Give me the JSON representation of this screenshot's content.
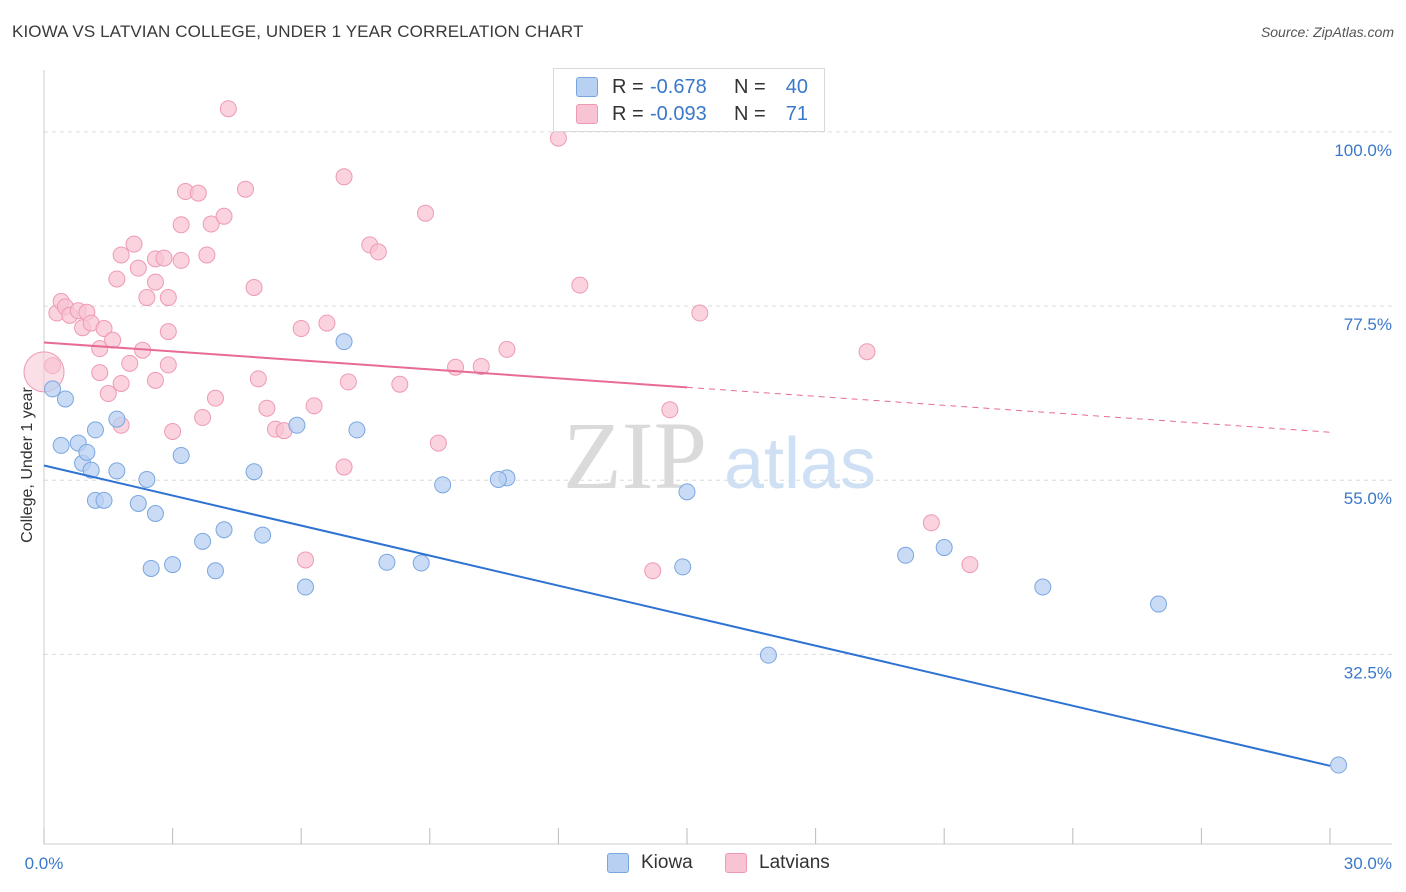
{
  "header": {
    "title": "KIOWA VS LATVIAN COLLEGE, UNDER 1 YEAR CORRELATION CHART",
    "source": "Source: ZipAtlas.com"
  },
  "watermark": {
    "zip": "ZIP",
    "atlas": "atlas"
  },
  "legend_top": {
    "rows": [
      {
        "r_label": "R = ",
        "r_value": "-0.678",
        "n_label": "N = ",
        "n_value": "40"
      },
      {
        "r_label": "R = ",
        "r_value": "-0.093",
        "n_label": "N = ",
        "n_value": "71"
      }
    ]
  },
  "legend_bottom": {
    "items": [
      {
        "label": "Kiowa"
      },
      {
        "label": "Latvians"
      }
    ]
  },
  "colors": {
    "kiowa_fill": "#b8d0f2",
    "kiowa_stroke": "#7aa6e0",
    "kiowa_line": "#2e72d2",
    "latvian_fill": "#f8c4d3",
    "latvian_stroke": "#ee9ab4",
    "latvian_line": "#e86b95",
    "tick_label": "#3a78c9",
    "grid": "#dcdcdc"
  },
  "chart_data": {
    "type": "scatter",
    "title": "KIOWA VS LATVIAN COLLEGE, UNDER 1 YEAR CORRELATION CHART",
    "xlabel": "",
    "ylabel": "College, Under 1 year",
    "xlim": [
      0,
      30
    ],
    "ylim": [
      8,
      108
    ],
    "x_tick_labels": [
      "0.0%",
      "30.0%"
    ],
    "y_ticks": [
      32.5,
      55,
      77.5,
      100
    ],
    "y_tick_labels": [
      "32.5%",
      "55.0%",
      "77.5%",
      "100.0%"
    ],
    "grid": true,
    "legend_position": "top-center",
    "series": [
      {
        "name": "Kiowa",
        "points": [
          [
            0.2,
            66.8
          ],
          [
            0.5,
            65.5
          ],
          [
            0.4,
            59.5
          ],
          [
            0.8,
            59.8
          ],
          [
            0.9,
            57.2
          ],
          [
            1.0,
            58.6
          ],
          [
            1.1,
            56.3
          ],
          [
            1.7,
            62.9
          ],
          [
            1.2,
            52.4
          ],
          [
            1.4,
            52.4
          ],
          [
            1.2,
            61.5
          ],
          [
            1.7,
            56.2
          ],
          [
            2.2,
            52.0
          ],
          [
            2.4,
            55.1
          ],
          [
            2.5,
            43.6
          ],
          [
            2.6,
            50.7
          ],
          [
            3.2,
            58.2
          ],
          [
            3.0,
            44.1
          ],
          [
            3.7,
            47.1
          ],
          [
            4.0,
            43.3
          ],
          [
            4.2,
            48.6
          ],
          [
            5.1,
            47.9
          ],
          [
            5.9,
            62.1
          ],
          [
            6.1,
            41.2
          ],
          [
            4.9,
            56.1
          ],
          [
            7.0,
            72.9
          ],
          [
            7.3,
            61.5
          ],
          [
            8.0,
            44.4
          ],
          [
            8.8,
            44.3
          ],
          [
            9.3,
            54.4
          ],
          [
            10.8,
            55.3
          ],
          [
            10.6,
            55.1
          ],
          [
            15.0,
            53.5
          ],
          [
            14.9,
            43.8
          ],
          [
            16.9,
            32.4
          ],
          [
            20.1,
            45.3
          ],
          [
            21.0,
            46.3
          ],
          [
            23.3,
            41.2
          ],
          [
            26.0,
            39.0
          ],
          [
            30.2,
            18.2
          ]
        ]
      },
      {
        "name": "Latvians",
        "points": [
          [
            0.2,
            69.8
          ],
          [
            0.3,
            76.6
          ],
          [
            0.4,
            78.1
          ],
          [
            0.5,
            77.4
          ],
          [
            0.6,
            76.3
          ],
          [
            0.8,
            76.9
          ],
          [
            1.0,
            76.7
          ],
          [
            0.9,
            74.7
          ],
          [
            1.1,
            75.3
          ],
          [
            1.3,
            72.0
          ],
          [
            1.3,
            68.9
          ],
          [
            1.5,
            66.2
          ],
          [
            1.4,
            74.6
          ],
          [
            1.6,
            73.1
          ],
          [
            1.8,
            67.5
          ],
          [
            1.8,
            62.1
          ],
          [
            2.0,
            70.1
          ],
          [
            1.7,
            81.0
          ],
          [
            1.8,
            84.1
          ],
          [
            2.1,
            85.5
          ],
          [
            2.2,
            82.4
          ],
          [
            2.4,
            78.6
          ],
          [
            2.6,
            83.6
          ],
          [
            2.6,
            80.6
          ],
          [
            2.3,
            71.8
          ],
          [
            2.6,
            67.9
          ],
          [
            2.8,
            83.7
          ],
          [
            2.9,
            78.6
          ],
          [
            2.9,
            74.2
          ],
          [
            2.9,
            69.9
          ],
          [
            3.0,
            61.3
          ],
          [
            3.2,
            83.4
          ],
          [
            3.2,
            88.0
          ],
          [
            3.3,
            92.3
          ],
          [
            3.6,
            92.1
          ],
          [
            3.7,
            63.1
          ],
          [
            3.8,
            84.1
          ],
          [
            3.9,
            88.1
          ],
          [
            4.0,
            65.6
          ],
          [
            4.2,
            89.1
          ],
          [
            4.3,
            103.0
          ],
          [
            4.7,
            92.6
          ],
          [
            4.9,
            79.9
          ],
          [
            5.0,
            68.1
          ],
          [
            5.2,
            64.3
          ],
          [
            5.4,
            61.6
          ],
          [
            5.6,
            61.4
          ],
          [
            6.0,
            74.6
          ],
          [
            6.3,
            64.6
          ],
          [
            6.1,
            44.7
          ],
          [
            6.6,
            75.3
          ],
          [
            7.0,
            94.2
          ],
          [
            7.1,
            67.7
          ],
          [
            7.0,
            56.7
          ],
          [
            7.6,
            85.4
          ],
          [
            7.8,
            84.5
          ],
          [
            8.3,
            67.4
          ],
          [
            8.9,
            89.5
          ],
          [
            9.2,
            59.8
          ],
          [
            9.6,
            69.6
          ],
          [
            10.2,
            69.7
          ],
          [
            10.8,
            71.9
          ],
          [
            12.0,
            99.2
          ],
          [
            12.5,
            80.2
          ],
          [
            14.6,
            64.1
          ],
          [
            15.3,
            76.6
          ],
          [
            14.2,
            43.3
          ],
          [
            17.4,
            103.0
          ],
          [
            19.2,
            71.6
          ],
          [
            20.7,
            49.5
          ],
          [
            21.6,
            44.1
          ]
        ]
      }
    ],
    "trend_lines": [
      {
        "series": "Kiowa",
        "x": [
          0,
          30
        ],
        "y": [
          56.9,
          18.1
        ]
      },
      {
        "series": "Latvians",
        "x": [
          0,
          15
        ],
        "y": [
          72.8,
          67.0
        ]
      },
      {
        "series": "Latvians (extrapolated, dashed)",
        "x": [
          15,
          30
        ],
        "y": [
          67.0,
          61.2
        ]
      }
    ]
  }
}
